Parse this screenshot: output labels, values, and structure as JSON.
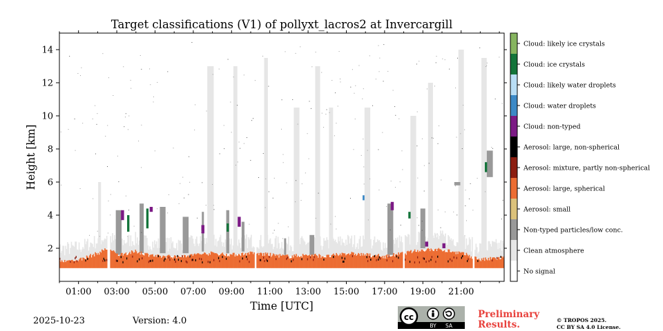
{
  "footer": {
    "date": "2025-10-23",
    "version": "Version: 4.0",
    "license_badge": {
      "cc": "cc",
      "by": "BY",
      "sa": "SA"
    },
    "preliminary": "Preliminary\nResults.",
    "copyright": "© TROPOS 2025.\nCC BY SA 4.0 License."
  },
  "chart_data": {
    "type": "heatmap",
    "title": "Target classifications (V1) of pollyxt_lacros2 at Invercargill",
    "xlabel": "Time [UTC]",
    "ylabel": "Height [km]",
    "xlim": [
      0,
      23.25
    ],
    "ylim": [
      0,
      15
    ],
    "grid": false,
    "x_ticks": [
      {
        "value": 1,
        "label": "01:00"
      },
      {
        "value": 3,
        "label": "03:00"
      },
      {
        "value": 5,
        "label": "05:00"
      },
      {
        "value": 7,
        "label": "07:00"
      },
      {
        "value": 9,
        "label": "09:00"
      },
      {
        "value": 11,
        "label": "11:00"
      },
      {
        "value": 13,
        "label": "13:00"
      },
      {
        "value": 15,
        "label": "15:00"
      },
      {
        "value": 17,
        "label": "17:00"
      },
      {
        "value": 19,
        "label": "19:00"
      },
      {
        "value": 21,
        "label": "21:00"
      }
    ],
    "y_ticks": [
      {
        "value": 2,
        "label": "2"
      },
      {
        "value": 4,
        "label": "4"
      },
      {
        "value": 6,
        "label": "6"
      },
      {
        "value": 8,
        "label": "8"
      },
      {
        "value": 10,
        "label": "10"
      },
      {
        "value": 12,
        "label": "12"
      },
      {
        "value": 14,
        "label": "14"
      }
    ],
    "colorbar": [
      {
        "label": "No signal",
        "color": "#ffffff"
      },
      {
        "label": "Clean atmosphere",
        "color": "#e6e6e6"
      },
      {
        "label": "Non-typed particles/low conc.",
        "color": "#999999"
      },
      {
        "label": "Aerosol: small",
        "color": "#dcc27b"
      },
      {
        "label": "Aerosol: large, spherical",
        "color": "#ec6d33"
      },
      {
        "label": "Aerosol: mixture, partly non-spherical",
        "color": "#8c1d10"
      },
      {
        "label": "Aerosol: large, non-spherical",
        "color": "#000000"
      },
      {
        "label": "Cloud: non-typed",
        "color": "#7c1a85"
      },
      {
        "label": "Cloud: water droplets",
        "color": "#3c89c6"
      },
      {
        "label": "Cloud: likely water droplets",
        "color": "#b9def5"
      },
      {
        "label": "Cloud: ice crystals",
        "color": "#13743a"
      },
      {
        "label": "Cloud: likely ice crystals",
        "color": "#86b45f"
      }
    ],
    "layers": {
      "aerosol_large_spherical": [
        [
          0,
          0.8,
          1.2
        ],
        [
          1,
          0.8,
          1.3
        ],
        [
          2,
          0.8,
          1.7
        ],
        [
          2.5,
          0.8,
          2.0
        ],
        [
          3,
          0.8,
          1.6
        ],
        [
          4,
          0.8,
          1.8
        ],
        [
          5,
          0.8,
          1.5
        ],
        [
          6,
          0.8,
          1.5
        ],
        [
          7,
          0.8,
          1.6
        ],
        [
          8,
          0.8,
          1.7
        ],
        [
          9,
          0.8,
          1.6
        ],
        [
          10,
          0.8,
          1.7
        ],
        [
          11,
          0.8,
          1.6
        ],
        [
          12,
          0.8,
          1.5
        ],
        [
          13,
          0.8,
          1.6
        ],
        [
          14,
          0.8,
          1.5
        ],
        [
          15,
          0.8,
          1.7
        ],
        [
          16,
          0.8,
          1.6
        ],
        [
          17,
          0.8,
          1.5
        ],
        [
          18,
          0.8,
          1.7
        ],
        [
          19,
          0.8,
          1.9
        ],
        [
          20,
          0.8,
          1.9
        ],
        [
          21,
          0.8,
          1.7
        ],
        [
          22,
          0.8,
          1.3
        ],
        [
          23,
          0.8,
          1.4
        ]
      ],
      "non_typed_particles": [
        [
          3.1,
          1.6,
          4.3
        ],
        [
          4.3,
          1.7,
          4.7
        ],
        [
          5.4,
          1.7,
          4.5
        ],
        [
          6.6,
          1.7,
          3.9
        ],
        [
          7.5,
          1.8,
          4.2
        ],
        [
          8.8,
          1.7,
          4.3
        ],
        [
          9.6,
          1.8,
          3.6
        ],
        [
          11.8,
          1.6,
          2.6
        ],
        [
          13.2,
          1.6,
          2.8
        ],
        [
          17.3,
          1.6,
          4.7
        ],
        [
          19.0,
          2.0,
          4.4
        ],
        [
          20.8,
          5.8,
          6.0
        ],
        [
          22.5,
          6.3,
          7.9
        ]
      ],
      "clean_atmosphere_columns": [
        [
          2.1,
          2.0,
          6.0
        ],
        [
          7.9,
          1.8,
          13.0
        ],
        [
          9.2,
          1.8,
          13.0
        ],
        [
          10.8,
          1.8,
          13.5
        ],
        [
          12.4,
          1.8,
          10.5
        ],
        [
          13.5,
          1.8,
          13.0
        ],
        [
          14.2,
          1.8,
          10.5
        ],
        [
          16.1,
          1.8,
          10.5
        ],
        [
          18.5,
          2.0,
          10.0
        ],
        [
          19.4,
          2.0,
          12.0
        ],
        [
          21.0,
          1.8,
          14.0
        ],
        [
          22.2,
          1.8,
          13.5
        ]
      ],
      "cloud_ice_crystals": [
        [
          3.6,
          3.0,
          4.0
        ],
        [
          4.6,
          3.2,
          4.4
        ],
        [
          8.8,
          3.0,
          3.5
        ],
        [
          22.3,
          6.6,
          7.2
        ],
        [
          18.3,
          3.8,
          4.2
        ]
      ],
      "cloud_non_typed": [
        [
          3.3,
          3.7,
          4.3
        ],
        [
          4.8,
          4.2,
          4.5
        ],
        [
          7.5,
          2.9,
          3.4
        ],
        [
          9.4,
          3.3,
          3.9
        ],
        [
          17.4,
          4.3,
          4.8
        ],
        [
          19.2,
          2.1,
          2.4
        ],
        [
          20.1,
          2.0,
          2.3
        ]
      ],
      "cloud_water_droplets": [
        [
          15.9,
          4.9,
          5.2
        ]
      ],
      "data_gaps": [
        [
          2.45,
          2.6
        ],
        [
          10.2,
          10.3
        ],
        [
          17.95,
          18.05
        ],
        [
          21.6,
          21.7
        ]
      ]
    }
  }
}
